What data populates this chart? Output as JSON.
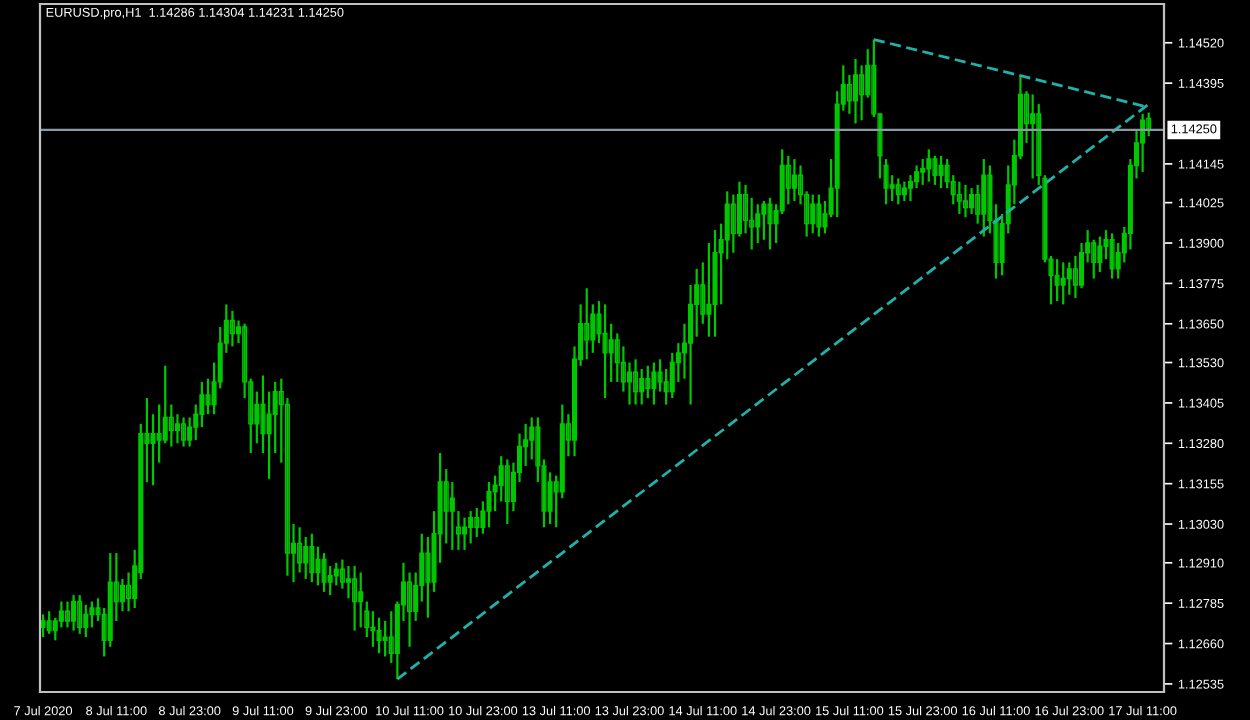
{
  "chart_data": {
    "type": "candlestick",
    "title": "EURUSD.pro,H1  1.14286 1.14304 1.14231 1.14250",
    "color": "#00c800",
    "categories": [
      "7 Jul 2020",
      null,
      null,
      null,
      null,
      null,
      null,
      null,
      null,
      null,
      null,
      null,
      "8 Jul 11:00",
      null,
      null,
      null,
      null,
      null,
      null,
      null,
      null,
      null,
      null,
      null,
      "8 Jul 23:00",
      null,
      null,
      null,
      null,
      null,
      null,
      null,
      null,
      null,
      null,
      null,
      "9 Jul 11:00",
      null,
      null,
      null,
      null,
      null,
      null,
      null,
      null,
      null,
      null,
      null,
      "9 Jul 23:00",
      null,
      null,
      null,
      null,
      null,
      null,
      null,
      null,
      null,
      null,
      null,
      "10 Jul 11:00",
      null,
      null,
      null,
      null,
      null,
      null,
      null,
      null,
      null,
      null,
      null,
      "10 Jul 23:00",
      null,
      null,
      null,
      null,
      null,
      null,
      null,
      null,
      null,
      null,
      null,
      "13 Jul 11:00",
      null,
      null,
      null,
      null,
      null,
      null,
      null,
      null,
      null,
      null,
      null,
      "13 Jul 23:00",
      null,
      null,
      null,
      null,
      null,
      null,
      null,
      null,
      null,
      null,
      null,
      "14 Jul 11:00",
      null,
      null,
      null,
      null,
      null,
      null,
      null,
      null,
      null,
      null,
      null,
      "14 Jul 23:00",
      null,
      null,
      null,
      null,
      null,
      null,
      null,
      null,
      null,
      null,
      null,
      "15 Jul 11:00",
      null,
      null,
      null,
      null,
      null,
      null,
      null,
      null,
      null,
      null,
      null,
      "15 Jul 23:00",
      null,
      null,
      null,
      null,
      null,
      null,
      null,
      null,
      null,
      null,
      null,
      "16 Jul 11:00",
      null,
      null,
      null,
      null,
      null,
      null,
      null,
      null,
      null,
      null,
      null,
      "16 Jul 23:00",
      null,
      null,
      null,
      null,
      null,
      null,
      null,
      null,
      null,
      null,
      null,
      "17 Jul 11:00",
      null
    ],
    "ohlc": [
      [
        1.1271,
        1.1275,
        1.1268,
        1.1273
      ],
      [
        1.1273,
        1.1276,
        1.1269,
        1.127
      ],
      [
        1.127,
        1.1274,
        1.1267,
        1.1273
      ],
      [
        1.1273,
        1.1279,
        1.1271,
        1.1276
      ],
      [
        1.1276,
        1.1279,
        1.1271,
        1.1273
      ],
      [
        1.1273,
        1.1281,
        1.127,
        1.1279
      ],
      [
        1.1279,
        1.1281,
        1.1269,
        1.1271
      ],
      [
        1.1271,
        1.1278,
        1.1268,
        1.1275
      ],
      [
        1.1275,
        1.1279,
        1.1271,
        1.1277
      ],
      [
        1.1277,
        1.128,
        1.1273,
        1.1275
      ],
      [
        1.1275,
        1.1277,
        1.1262,
        1.1267
      ],
      [
        1.1267,
        1.1294,
        1.1265,
        1.1285
      ],
      [
        1.1285,
        1.1294,
        1.1273,
        1.1279
      ],
      [
        1.1279,
        1.1286,
        1.1276,
        1.1284
      ],
      [
        1.1284,
        1.1288,
        1.1276,
        1.128
      ],
      [
        1.128,
        1.1295,
        1.1277,
        1.129
      ],
      [
        1.1288,
        1.1334,
        1.1286,
        1.1331
      ],
      [
        1.1331,
        1.1342,
        1.1316,
        1.1328
      ],
      [
        1.1328,
        1.1337,
        1.1315,
        1.1331
      ],
      [
        1.1331,
        1.134,
        1.1322,
        1.1329
      ],
      [
        1.1329,
        1.1352,
        1.1328,
        1.1336
      ],
      [
        1.1336,
        1.134,
        1.1327,
        1.1332
      ],
      [
        1.1332,
        1.1337,
        1.1328,
        1.1334
      ],
      [
        1.1334,
        1.1336,
        1.1327,
        1.1329
      ],
      [
        1.1329,
        1.1336,
        1.1327,
        1.1333
      ],
      [
        1.1333,
        1.134,
        1.1329,
        1.1337
      ],
      [
        1.1337,
        1.1347,
        1.1333,
        1.1343
      ],
      [
        1.1343,
        1.1348,
        1.1337,
        1.134
      ],
      [
        1.134,
        1.1353,
        1.1337,
        1.1347
      ],
      [
        1.1347,
        1.1364,
        1.1345,
        1.1359
      ],
      [
        1.1359,
        1.1371,
        1.1356,
        1.1366
      ],
      [
        1.1366,
        1.1369,
        1.1358,
        1.1362
      ],
      [
        1.1362,
        1.1366,
        1.1359,
        1.1364
      ],
      [
        1.1364,
        1.1365,
        1.1342,
        1.1347
      ],
      [
        1.1347,
        1.1348,
        1.1325,
        1.1334
      ],
      [
        1.1334,
        1.1344,
        1.1328,
        1.134
      ],
      [
        1.134,
        1.1349,
        1.1325,
        1.1331
      ],
      [
        1.1331,
        1.1344,
        1.1317,
        1.1337
      ],
      [
        1.1337,
        1.1347,
        1.1325,
        1.1344
      ],
      [
        1.1344,
        1.1348,
        1.1322,
        1.134
      ],
      [
        1.134,
        1.1342,
        1.1287,
        1.1294
      ],
      [
        1.1294,
        1.1303,
        1.1285,
        1.1297
      ],
      [
        1.1297,
        1.1302,
        1.1288,
        1.1291
      ],
      [
        1.1291,
        1.1299,
        1.1286,
        1.1296
      ],
      [
        1.1296,
        1.13,
        1.1285,
        1.1288
      ],
      [
        1.1288,
        1.1296,
        1.1284,
        1.1292
      ],
      [
        1.1292,
        1.1294,
        1.1282,
        1.1285
      ],
      [
        1.1285,
        1.129,
        1.1281,
        1.1287
      ],
      [
        1.1287,
        1.1291,
        1.1284,
        1.1289
      ],
      [
        1.1289,
        1.1292,
        1.1283,
        1.1285
      ],
      [
        1.1285,
        1.129,
        1.128,
        1.1286
      ],
      [
        1.1286,
        1.129,
        1.127,
        1.1279
      ],
      [
        1.1279,
        1.1288,
        1.1271,
        1.1282
      ],
      [
        1.1276,
        1.1279,
        1.1268,
        1.1271
      ],
      [
        1.1271,
        1.1276,
        1.1265,
        1.127
      ],
      [
        1.127,
        1.1274,
        1.1263,
        1.1267
      ],
      [
        1.1267,
        1.1273,
        1.1262,
        1.1268
      ],
      [
        1.1268,
        1.1276,
        1.126,
        1.1263
      ],
      [
        1.1263,
        1.1279,
        1.1255,
        1.1278
      ],
      [
        1.1278,
        1.1291,
        1.1273,
        1.1285
      ],
      [
        1.1285,
        1.1288,
        1.1265,
        1.1276
      ],
      [
        1.1276,
        1.1288,
        1.1273,
        1.1284
      ],
      [
        1.1284,
        1.13,
        1.1279,
        1.1294
      ],
      [
        1.1294,
        1.1299,
        1.1274,
        1.1285
      ],
      [
        1.1285,
        1.1307,
        1.1282,
        1.13
      ],
      [
        1.13,
        1.1325,
        1.1291,
        1.1316
      ],
      [
        1.1316,
        1.132,
        1.1297,
        1.1307
      ],
      [
        1.1307,
        1.1316,
        1.1295,
        1.1311
      ],
      [
        1.1302,
        1.1307,
        1.1295,
        1.13
      ],
      [
        1.13,
        1.1305,
        1.1295,
        1.1302
      ],
      [
        1.1302,
        1.1307,
        1.1297,
        1.1305
      ],
      [
        1.1305,
        1.1308,
        1.1299,
        1.1302
      ],
      [
        1.1302,
        1.131,
        1.13,
        1.1307
      ],
      [
        1.1307,
        1.1316,
        1.1302,
        1.1313
      ],
      [
        1.1313,
        1.1318,
        1.1307,
        1.1315
      ],
      [
        1.1315,
        1.1324,
        1.131,
        1.1321
      ],
      [
        1.1321,
        1.1323,
        1.1303,
        1.131
      ],
      [
        1.131,
        1.1322,
        1.1307,
        1.1319
      ],
      [
        1.1319,
        1.1331,
        1.1316,
        1.1327
      ],
      [
        1.1327,
        1.1334,
        1.1321,
        1.1329
      ],
      [
        1.1329,
        1.1336,
        1.1323,
        1.1333
      ],
      [
        1.1333,
        1.1336,
        1.1316,
        1.1321
      ],
      [
        1.1321,
        1.1323,
        1.1302,
        1.1307
      ],
      [
        1.1307,
        1.1319,
        1.1303,
        1.1316
      ],
      [
        1.1316,
        1.1318,
        1.1302,
        1.1313
      ],
      [
        1.1313,
        1.134,
        1.1311,
        1.1334
      ],
      [
        1.1334,
        1.1337,
        1.1324,
        1.1329
      ],
      [
        1.1329,
        1.1358,
        1.1324,
        1.1354
      ],
      [
        1.1354,
        1.1371,
        1.1352,
        1.1365
      ],
      [
        1.1365,
        1.1376,
        1.1354,
        1.136
      ],
      [
        1.136,
        1.1371,
        1.1356,
        1.1368
      ],
      [
        1.1368,
        1.1372,
        1.1359,
        1.1362
      ],
      [
        1.1362,
        1.1371,
        1.1342,
        1.1356
      ],
      [
        1.1356,
        1.1365,
        1.1347,
        1.136
      ],
      [
        1.136,
        1.1362,
        1.1347,
        1.1353
      ],
      [
        1.1353,
        1.1358,
        1.1344,
        1.1347
      ],
      [
        1.1347,
        1.1353,
        1.134,
        1.135
      ],
      [
        1.135,
        1.1354,
        1.134,
        1.1344
      ],
      [
        1.1344,
        1.1351,
        1.134,
        1.1348
      ],
      [
        1.1348,
        1.1352,
        1.1342,
        1.1345
      ],
      [
        1.1345,
        1.1353,
        1.134,
        1.135
      ],
      [
        1.135,
        1.1354,
        1.1344,
        1.1347
      ],
      [
        1.1347,
        1.1351,
        1.134,
        1.1344
      ],
      [
        1.1344,
        1.1356,
        1.1342,
        1.1353
      ],
      [
        1.1353,
        1.1359,
        1.1347,
        1.1356
      ],
      [
        1.1356,
        1.1365,
        1.1348,
        1.1359
      ],
      [
        1.1359,
        1.1377,
        1.134,
        1.1371
      ],
      [
        1.1371,
        1.1382,
        1.1361,
        1.1377
      ],
      [
        1.1377,
        1.1384,
        1.1365,
        1.1368
      ],
      [
        1.1368,
        1.139,
        1.1361,
        1.1371
      ],
      [
        1.1371,
        1.1394,
        1.1361,
        1.1387
      ],
      [
        1.1387,
        1.1396,
        1.1371,
        1.1391
      ],
      [
        1.1391,
        1.1406,
        1.1385,
        1.1402
      ],
      [
        1.1402,
        1.1405,
        1.1387,
        1.1393
      ],
      [
        1.1393,
        1.1409,
        1.1392,
        1.1405
      ],
      [
        1.1405,
        1.1408,
        1.1393,
        1.1397
      ],
      [
        1.1397,
        1.1404,
        1.1388,
        1.1395
      ],
      [
        1.1395,
        1.1402,
        1.139,
        1.1399
      ],
      [
        1.1399,
        1.1403,
        1.1391,
        1.1402
      ],
      [
        1.1402,
        1.1404,
        1.1388,
        1.1396
      ],
      [
        1.1396,
        1.1402,
        1.139,
        1.14
      ],
      [
        1.14,
        1.1419,
        1.1399,
        1.1414
      ],
      [
        1.1414,
        1.1417,
        1.1402,
        1.1407
      ],
      [
        1.1407,
        1.1416,
        1.1403,
        1.1411
      ],
      [
        1.1411,
        1.1414,
        1.1402,
        1.1405
      ],
      [
        1.1405,
        1.1406,
        1.1392,
        1.1396
      ],
      [
        1.1396,
        1.1405,
        1.1393,
        1.1402
      ],
      [
        1.1402,
        1.1405,
        1.1392,
        1.1395
      ],
      [
        1.1395,
        1.1403,
        1.1393,
        1.1399
      ],
      [
        1.1399,
        1.1416,
        1.1398,
        1.1407
      ],
      [
        1.1407,
        1.1437,
        1.1398,
        1.1433
      ],
      [
        1.1433,
        1.1445,
        1.1431,
        1.1439
      ],
      [
        1.1439,
        1.1442,
        1.143,
        1.1434
      ],
      [
        1.1434,
        1.1447,
        1.1427,
        1.1442
      ],
      [
        1.1442,
        1.1445,
        1.1428,
        1.1436
      ],
      [
        1.1436,
        1.145,
        1.1435,
        1.1445
      ],
      [
        1.1445,
        1.1453,
        1.1429,
        1.143
      ],
      [
        1.143,
        1.143,
        1.141,
        1.1417
      ],
      [
        1.1414,
        1.1416,
        1.1402,
        1.1407
      ],
      [
        1.1407,
        1.1411,
        1.1403,
        1.1408
      ],
      [
        1.1408,
        1.141,
        1.1402,
        1.1405
      ],
      [
        1.1405,
        1.1409,
        1.1403,
        1.1407
      ],
      [
        1.1407,
        1.1411,
        1.1403,
        1.1409
      ],
      [
        1.1409,
        1.1414,
        1.1407,
        1.1412
      ],
      [
        1.1412,
        1.1416,
        1.1408,
        1.1413
      ],
      [
        1.1413,
        1.1419,
        1.1409,
        1.1416
      ],
      [
        1.1416,
        1.1417,
        1.1408,
        1.1411
      ],
      [
        1.1411,
        1.1417,
        1.1407,
        1.1414
      ],
      [
        1.1414,
        1.1416,
        1.1407,
        1.1409
      ],
      [
        1.1409,
        1.1411,
        1.1402,
        1.1405
      ],
      [
        1.1405,
        1.1409,
        1.1399,
        1.1403
      ],
      [
        1.1403,
        1.1408,
        1.1398,
        1.1401
      ],
      [
        1.1401,
        1.1407,
        1.1399,
        1.1405
      ],
      [
        1.1405,
        1.1408,
        1.1396,
        1.1399
      ],
      [
        1.1399,
        1.1416,
        1.1392,
        1.1411
      ],
      [
        1.1411,
        1.1414,
        1.1393,
        1.1397
      ],
      [
        1.1397,
        1.1402,
        1.1379,
        1.1384
      ],
      [
        1.1384,
        1.1399,
        1.138,
        1.1396
      ],
      [
        1.1396,
        1.1414,
        1.1393,
        1.1408
      ],
      [
        1.1408,
        1.1422,
        1.1402,
        1.1417
      ],
      [
        1.1417,
        1.1442,
        1.1416,
        1.1436
      ],
      [
        1.1436,
        1.1437,
        1.1421,
        1.1427
      ],
      [
        1.1427,
        1.1436,
        1.141,
        1.143
      ],
      [
        1.143,
        1.1433,
        1.1408,
        1.1411
      ],
      [
        1.141,
        1.1411,
        1.1384,
        1.1385
      ],
      [
        1.1385,
        1.1386,
        1.1371,
        1.138
      ],
      [
        1.138,
        1.1385,
        1.1372,
        1.1377
      ],
      [
        1.1377,
        1.1384,
        1.1371,
        1.1379
      ],
      [
        1.1379,
        1.1384,
        1.1374,
        1.1382
      ],
      [
        1.1382,
        1.1386,
        1.1373,
        1.1377
      ],
      [
        1.1377,
        1.139,
        1.1376,
        1.1387
      ],
      [
        1.1387,
        1.1394,
        1.1384,
        1.139
      ],
      [
        1.139,
        1.1391,
        1.1379,
        1.1384
      ],
      [
        1.1384,
        1.1392,
        1.1381,
        1.1389
      ],
      [
        1.1389,
        1.1394,
        1.1385,
        1.1391
      ],
      [
        1.1391,
        1.1393,
        1.1379,
        1.1382
      ],
      [
        1.1382,
        1.139,
        1.1379,
        1.1387
      ],
      [
        1.1387,
        1.1395,
        1.1384,
        1.1393
      ],
      [
        1.1393,
        1.1416,
        1.1388,
        1.1414
      ],
      [
        1.1414,
        1.1425,
        1.141,
        1.1421
      ],
      [
        1.1421,
        1.143,
        1.1412,
        1.1428
      ],
      [
        1.14286,
        1.14304,
        1.14231,
        1.1425
      ]
    ],
    "series": [
      {
        "type": "line",
        "color": "#20b2aa",
        "line_style": "dashed",
        "values": [
          null,
          null,
          null,
          null,
          null,
          null,
          null,
          null,
          null,
          null,
          null,
          null,
          null,
          null,
          null,
          null,
          null,
          null,
          null,
          null,
          null,
          null,
          null,
          null,
          null,
          null,
          null,
          null,
          null,
          null,
          null,
          null,
          null,
          null,
          null,
          null,
          null,
          null,
          null,
          null,
          null,
          null,
          null,
          null,
          null,
          null,
          null,
          null,
          null,
          null,
          null,
          null,
          null,
          null,
          null,
          null,
          null,
          null,
          null,
          null,
          null,
          null,
          null,
          null,
          null,
          null,
          null,
          null,
          null,
          null,
          null,
          null,
          null,
          null,
          null,
          null,
          null,
          null,
          null,
          null,
          null,
          null,
          null,
          null,
          null,
          null,
          null,
          null,
          null,
          null,
          null,
          null,
          null,
          null,
          null,
          null,
          null,
          null,
          null,
          null,
          null,
          null,
          null,
          null,
          null,
          null,
          null,
          null,
          null,
          null,
          null,
          null,
          null,
          null,
          null,
          null,
          null,
          null,
          null,
          null,
          null,
          null,
          null,
          null,
          null,
          null,
          null,
          null,
          null,
          null,
          null,
          null,
          null,
          null,
          null,
          null,
          1.1453,
          null,
          null,
          null,
          null,
          null,
          null,
          null,
          null,
          null,
          null,
          null,
          null,
          null,
          null,
          null,
          null,
          null,
          null,
          null,
          null,
          null,
          null,
          null,
          null,
          null,
          null,
          null,
          null,
          null,
          null,
          null,
          null,
          null,
          null,
          null,
          null,
          null,
          null,
          null,
          null,
          null,
          null,
          null,
          null,
          1.1432
        ]
      },
      {
        "type": "line",
        "color": "#20b2aa",
        "line_style": "dashed",
        "values": [
          null,
          null,
          null,
          null,
          null,
          null,
          null,
          null,
          null,
          null,
          null,
          null,
          null,
          null,
          null,
          null,
          null,
          null,
          null,
          null,
          null,
          null,
          null,
          null,
          null,
          null,
          null,
          null,
          null,
          null,
          null,
          null,
          null,
          null,
          null,
          null,
          null,
          null,
          null,
          null,
          null,
          null,
          null,
          null,
          null,
          null,
          null,
          null,
          null,
          null,
          null,
          null,
          null,
          null,
          null,
          null,
          null,
          null,
          1.1255,
          null,
          null,
          null,
          null,
          null,
          null,
          null,
          null,
          null,
          null,
          null,
          null,
          null,
          null,
          null,
          null,
          null,
          null,
          null,
          null,
          null,
          null,
          null,
          null,
          null,
          null,
          null,
          null,
          null,
          null,
          null,
          null,
          null,
          null,
          null,
          null,
          null,
          null,
          null,
          null,
          null,
          null,
          null,
          null,
          null,
          null,
          null,
          null,
          null,
          null,
          null,
          null,
          null,
          null,
          null,
          null,
          null,
          null,
          null,
          null,
          null,
          null,
          null,
          null,
          null,
          null,
          null,
          null,
          null,
          null,
          null,
          null,
          null,
          null,
          null,
          null,
          null,
          null,
          null,
          null,
          null,
          null,
          null,
          null,
          null,
          null,
          null,
          null,
          null,
          null,
          null,
          null,
          null,
          null,
          null,
          null,
          null,
          null,
          null,
          null,
          null,
          null,
          null,
          null,
          null,
          null,
          null,
          null,
          null,
          null,
          null,
          null,
          null,
          null,
          null,
          null,
          null,
          null,
          null,
          null,
          null,
          null,
          1.1433
        ]
      }
    ],
    "ylim": [
      1.1251,
      1.1464
    ],
    "yticks": [
      {
        "value": 1.1452,
        "label": "1.14520"
      },
      {
        "value": 1.14395,
        "label": "1.14395"
      },
      {
        "value": 1.14145,
        "label": "1.14145"
      },
      {
        "value": 1.14025,
        "label": "1.14025"
      },
      {
        "value": 1.139,
        "label": "1.13900"
      },
      {
        "value": 1.13775,
        "label": "1.13775"
      },
      {
        "value": 1.1365,
        "label": "1.13650"
      },
      {
        "value": 1.1353,
        "label": "1.13530"
      },
      {
        "value": 1.13405,
        "label": "1.13405"
      },
      {
        "value": 1.1328,
        "label": "1.13280"
      },
      {
        "value": 1.13155,
        "label": "1.13155"
      },
      {
        "value": 1.1303,
        "label": "1.13030"
      },
      {
        "value": 1.1291,
        "label": "1.12910"
      },
      {
        "value": 1.12785,
        "label": "1.12785"
      },
      {
        "value": 1.1266,
        "label": "1.12660"
      },
      {
        "value": 1.12535,
        "label": "1.12535"
      }
    ],
    "ref_lines": [
      {
        "axis": "y",
        "value": 1.1425,
        "label": "1.14250",
        "color": "#8c9aa8"
      }
    ]
  }
}
